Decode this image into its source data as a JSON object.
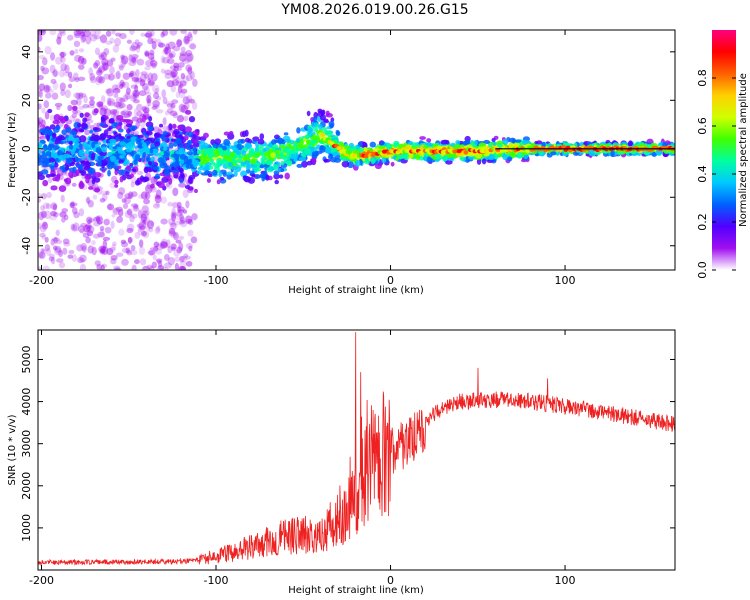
{
  "chart_data": [
    {
      "type": "heatmap",
      "title": "YM08.2026.019.00.26.G15",
      "xlabel": "Height of straight line (km)",
      "ylabel": "Frequency (Hz)",
      "xlim": [
        -202,
        163
      ],
      "ylim": [
        -50,
        49
      ],
      "xticks": [
        -200,
        -100,
        0,
        100
      ],
      "yticks": [
        -40,
        -20,
        0,
        20,
        40
      ],
      "colorbar": {
        "label": "Normalized spectral amplitude",
        "range": [
          0,
          1
        ],
        "ticks": [
          0.0,
          0.2,
          0.4,
          0.6,
          0.8
        ],
        "colors": [
          "#ffffff",
          "#a00ff0",
          "#5000ff",
          "#0060ff",
          "#00c8ff",
          "#00ffa0",
          "#40ff00",
          "#d0ff00",
          "#ffd000",
          "#ff6000",
          "#ff0000",
          "#ff0080"
        ]
      },
      "ridge": {
        "description_points": [
          {
            "x": -200,
            "y": 0
          },
          {
            "x": -150,
            "y": 0
          },
          {
            "x": -110,
            "y": -4
          },
          {
            "x": -80,
            "y": -4
          },
          {
            "x": -60,
            "y": -2
          },
          {
            "x": -40,
            "y": 6
          },
          {
            "x": -30,
            "y": 0
          },
          {
            "x": -20,
            "y": -3
          },
          {
            "x": 0,
            "y": -1
          },
          {
            "x": 40,
            "y": -1
          },
          {
            "x": 80,
            "y": 0
          },
          {
            "x": 163,
            "y": 0
          }
        ]
      }
    },
    {
      "type": "line",
      "xlabel": "Height of straight line (km)",
      "ylabel": "SNR (10 * v/v)",
      "xlim": [
        -202,
        163
      ],
      "ylim": [
        0,
        5700
      ],
      "xticks": [
        -200,
        -100,
        0,
        100
      ],
      "yticks": [
        1000,
        2000,
        3000,
        4000,
        5000
      ],
      "color": "#ee2020",
      "envelope": [
        {
          "x": -200,
          "y": 180
        },
        {
          "x": -120,
          "y": 200
        },
        {
          "x": -100,
          "y": 320
        },
        {
          "x": -80,
          "y": 550
        },
        {
          "x": -60,
          "y": 800
        },
        {
          "x": -40,
          "y": 900
        },
        {
          "x": -25,
          "y": 1300
        },
        {
          "x": -15,
          "y": 2200
        },
        {
          "x": -5,
          "y": 2800
        },
        {
          "x": 5,
          "y": 2900
        },
        {
          "x": 15,
          "y": 3200
        },
        {
          "x": 25,
          "y": 3700
        },
        {
          "x": 40,
          "y": 4000
        },
        {
          "x": 60,
          "y": 4050
        },
        {
          "x": 80,
          "y": 4000
        },
        {
          "x": 100,
          "y": 3900
        },
        {
          "x": 130,
          "y": 3700
        },
        {
          "x": 163,
          "y": 3450
        }
      ],
      "peaks": [
        {
          "x": -20,
          "y": 5650
        },
        {
          "x": -17,
          "y": 4700
        },
        {
          "x": -10,
          "y": 3800
        },
        {
          "x": 50,
          "y": 4800
        },
        {
          "x": 90,
          "y": 4550
        }
      ]
    }
  ]
}
